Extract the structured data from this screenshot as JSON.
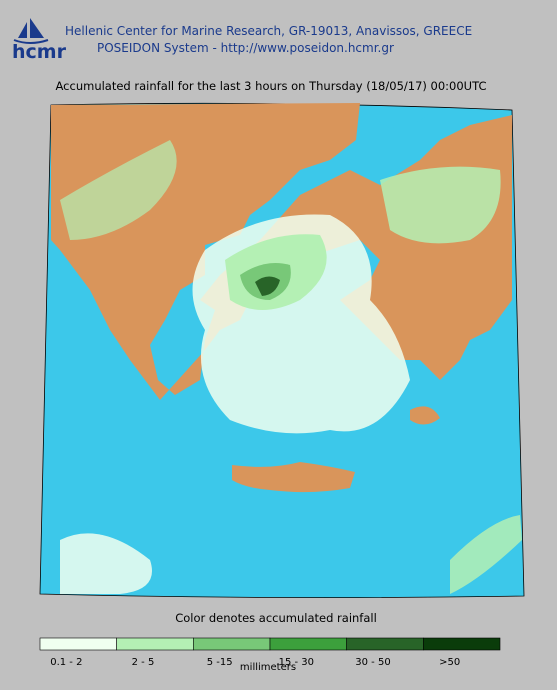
{
  "header": {
    "organization": "Hellenic Center for Marine Research, GR-19013, Anavissos, GREECE",
    "system": "POSEIDON System - http://www.poseidon.hcmr.gr",
    "logo": "hcmr"
  },
  "map": {
    "title": "Accumulated rainfall for the last 3 hours on Thursday (18/05/17) 00:00UTC"
  },
  "legend": {
    "title": "Color denotes accumulated rainfall",
    "unit": "millimeters",
    "items": [
      {
        "label": "0.1 - 2",
        "color": "#f0fff0"
      },
      {
        "label": "2 - 5",
        "color": "#b4f0b4"
      },
      {
        "label": "5 -15",
        "color": "#78c878"
      },
      {
        "label": "15 - 30",
        "color": "#3ca03c"
      },
      {
        "label": "30 - 50",
        "color": "#286428"
      },
      {
        "label": ">50",
        "color": "#0a3c0a"
      }
    ]
  }
}
